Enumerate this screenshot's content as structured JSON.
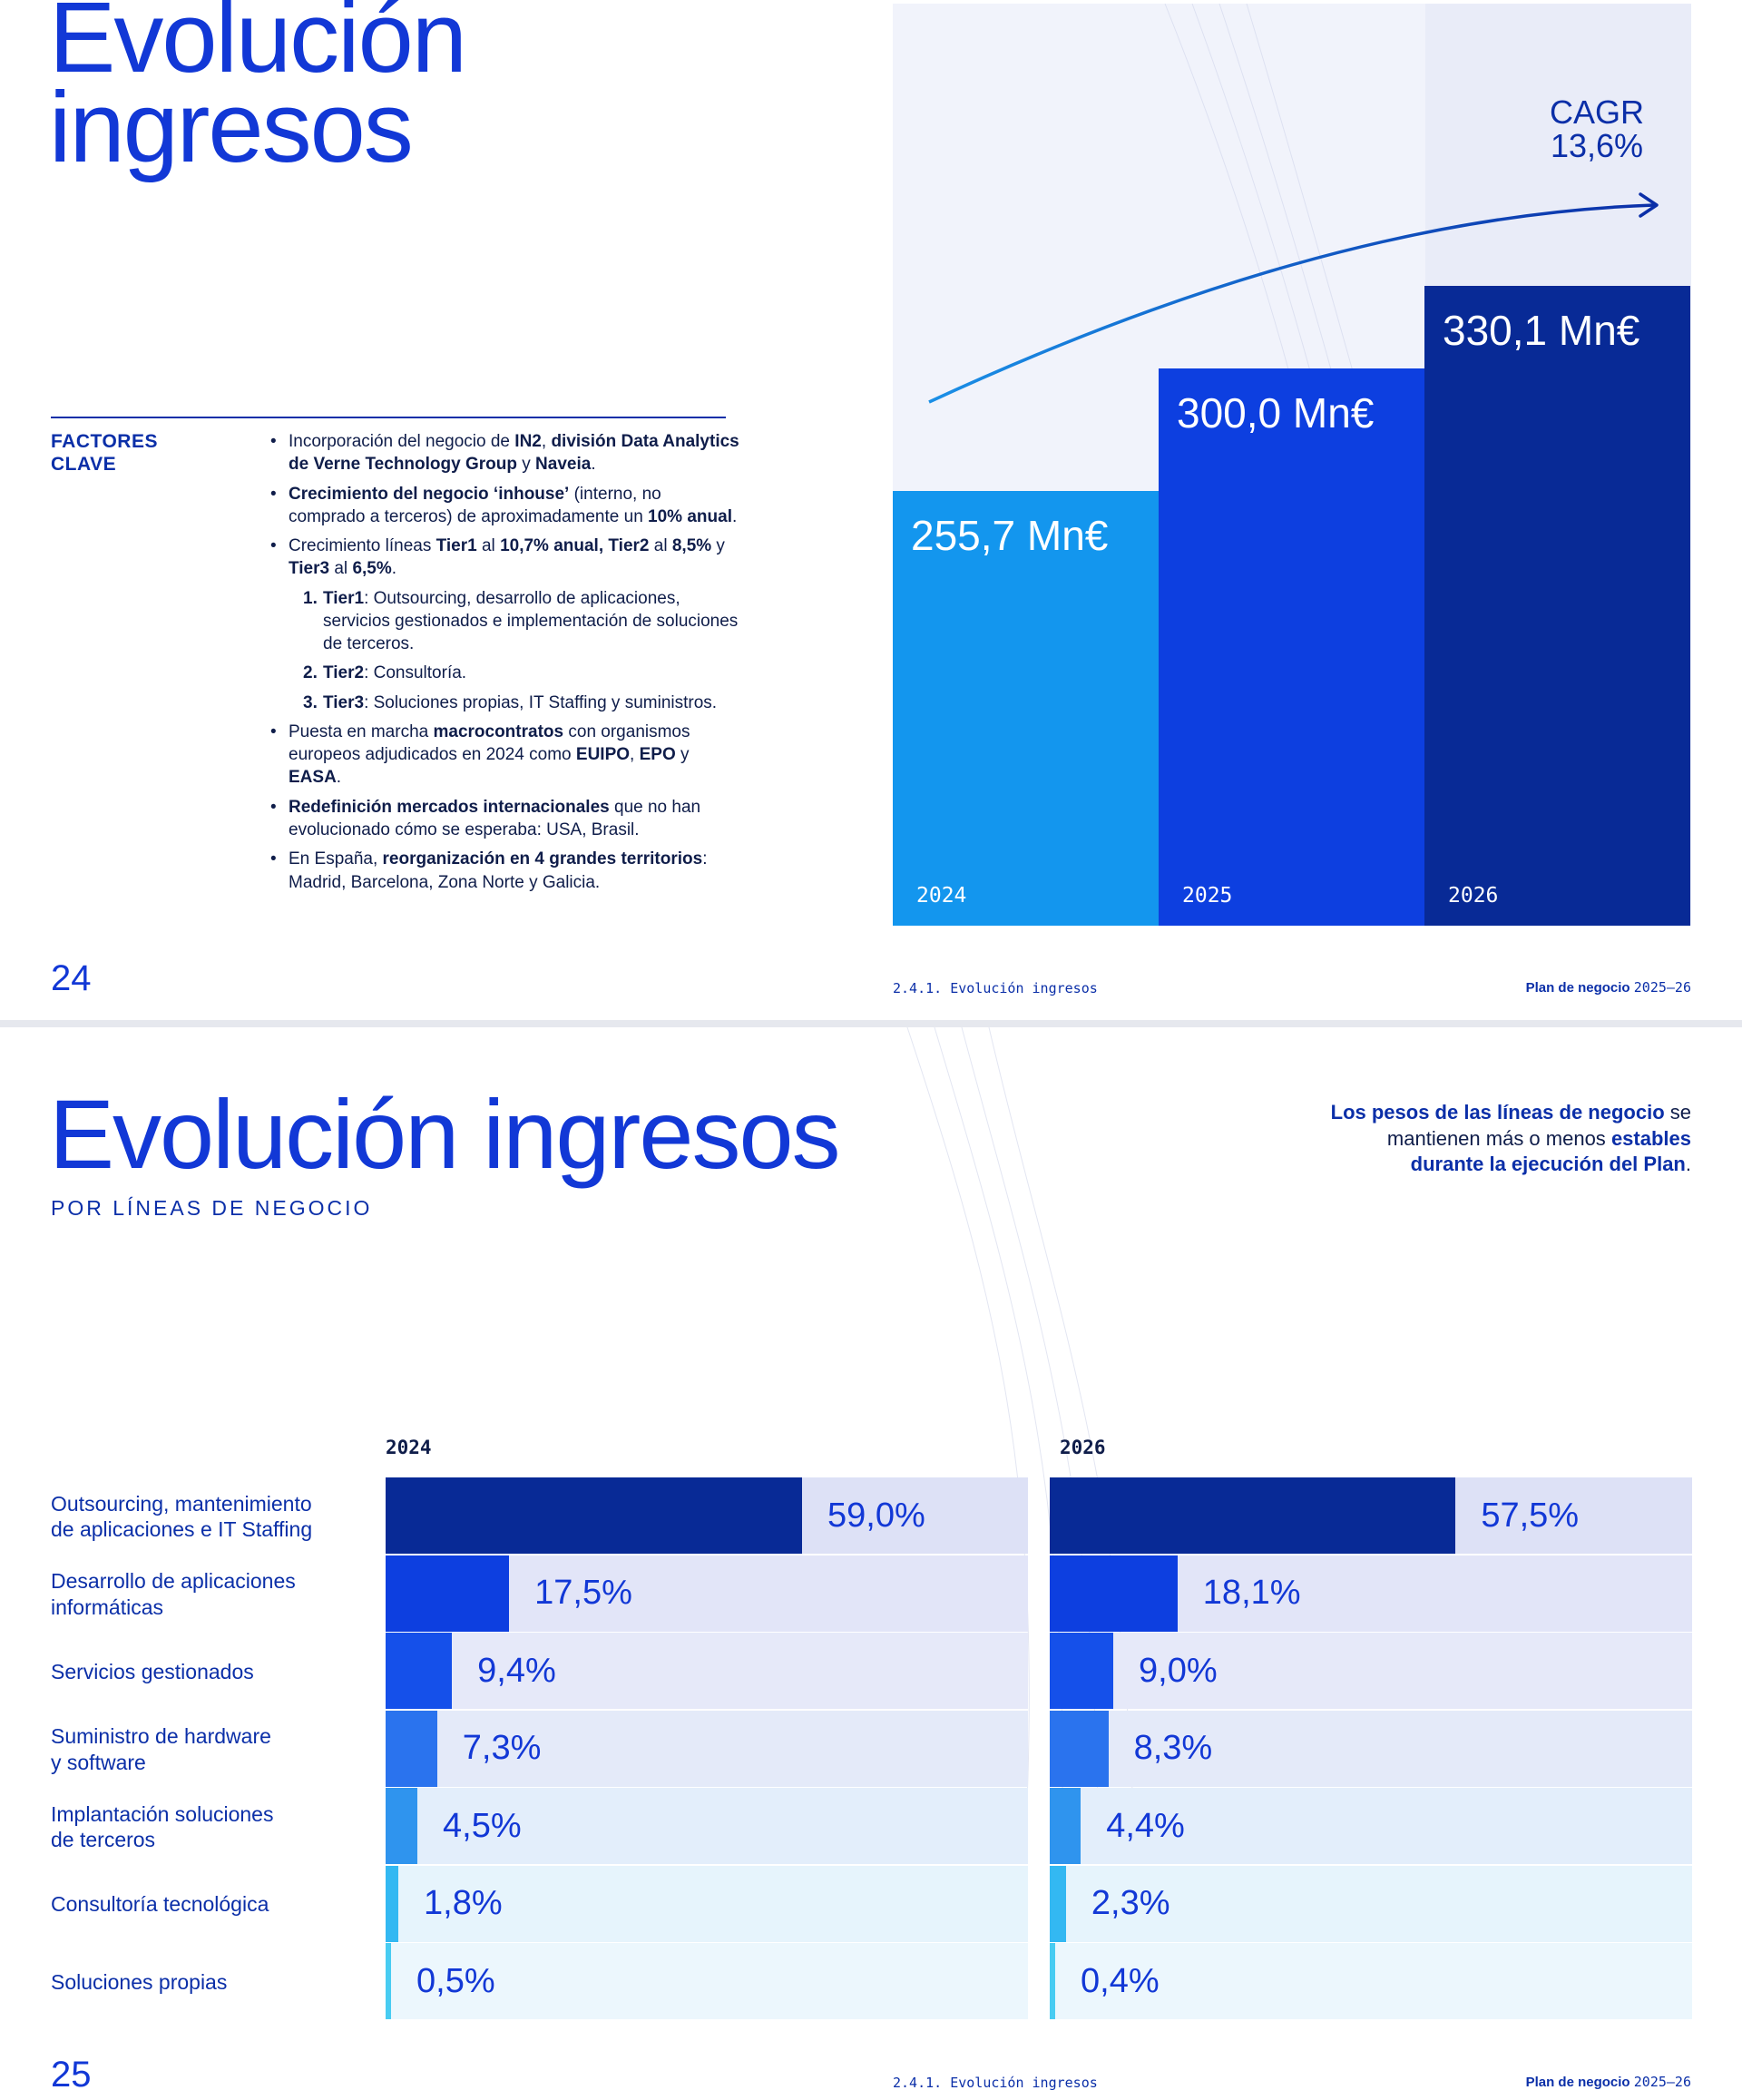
{
  "page1": {
    "title_line1": "Evolución",
    "title_line2": "ingresos",
    "factores_label_line1": "FACTORES",
    "factores_label_line2": "CLAVE",
    "page_number": "24",
    "footer_section": "2.4.1. Evolución ingresos",
    "footer_plan": "Plan de negocio",
    "footer_years": "2025–26",
    "cagr_label": "CAGR",
    "cagr_value": "13,6%",
    "colors": {
      "bar_2024": "#1396ee",
      "bar_2025": "#0d3fe0",
      "bar_2026": "#082a96",
      "accent": "#1238d6"
    },
    "chart_data": {
      "type": "bar",
      "categories": [
        "2024",
        "2025",
        "2026"
      ],
      "values": [
        255.7,
        300.0,
        330.1
      ],
      "value_labels": [
        "255,7 Mn€",
        "300,0 Mn€",
        "330,1 Mn€"
      ],
      "unit": "Mn€",
      "annotation": "CAGR 13,6%"
    }
  },
  "page2": {
    "title": "Evolución ingresos",
    "subtitle": "POR LÍNEAS DE NEGOCIO",
    "note_bold1": "Los pesos de las líneas de negocio",
    "note_plain1": " se mantienen más o menos ",
    "note_bold2": "estables durante la ejecución del Plan",
    "note_end": ".",
    "page_number": "25",
    "footer_section": "2.4.1. Evolución ingresos",
    "footer_plan": "Plan de negocio",
    "footer_years": "2025–26",
    "row_colors": [
      "#082a96",
      "#0d3fe0",
      "#1550ea",
      "#2a73ee",
      "#2f94ee",
      "#33b8f2",
      "#48ccf2"
    ],
    "chart_data": [
      {
        "type": "bar",
        "orientation": "horizontal",
        "title": "2024",
        "categories": [
          "Outsourcing, mantenimiento de aplicaciones e IT Staffing",
          "Desarrollo de aplicaciones informáticas",
          "Servicios gestionados",
          "Suministro de hardware y software",
          "Implantación soluciones de terceros",
          "Consultoría tecnológica",
          "Soluciones propias"
        ],
        "values": [
          59.0,
          17.5,
          9.4,
          7.3,
          4.5,
          1.8,
          0.5
        ],
        "value_labels": [
          "59,0%",
          "17,5%",
          "9,4%",
          "7,3%",
          "4,5%",
          "1,8%",
          "0,5%"
        ],
        "unit": "%"
      },
      {
        "type": "bar",
        "orientation": "horizontal",
        "title": "2026",
        "categories": [
          "Outsourcing, mantenimiento de aplicaciones e IT Staffing",
          "Desarrollo de aplicaciones informáticas",
          "Servicios gestionados",
          "Suministro de hardware y software",
          "Implantación soluciones de terceros",
          "Consultoría tecnológica",
          "Soluciones propias"
        ],
        "values": [
          57.5,
          18.1,
          9.0,
          8.3,
          4.4,
          2.3,
          0.4
        ],
        "value_labels": [
          "57,5%",
          "18,1%",
          "9,0%",
          "8,3%",
          "4,4%",
          "2,3%",
          "0,4%"
        ],
        "unit": "%"
      }
    ],
    "row_labels": [
      [
        "Outsourcing, mantenimiento",
        "de aplicaciones e IT Staffing"
      ],
      [
        "Desarrollo de aplicaciones",
        "informáticas"
      ],
      [
        "Servicios gestionados"
      ],
      [
        "Suministro de hardware",
        "y software"
      ],
      [
        "Implantación soluciones",
        "de terceros"
      ],
      [
        "Consultoría tecnológica"
      ],
      [
        "Soluciones propias"
      ]
    ]
  },
  "bullets": [
    {
      "parts": [
        [
          "Incorporación del negocio de ",
          false
        ],
        [
          "IN2",
          true
        ],
        [
          ", ",
          false
        ],
        [
          "división Data Analytics de Verne Technology Group",
          true
        ],
        [
          " y ",
          false
        ],
        [
          "Naveia",
          true
        ],
        [
          ".",
          false
        ]
      ]
    },
    {
      "parts": [
        [
          "Crecimiento del negocio ‘inhouse’",
          true
        ],
        [
          " (interno, no comprado a terceros) de aproximadamente un ",
          false
        ],
        [
          "10% anual",
          true
        ],
        [
          ".",
          false
        ]
      ]
    },
    {
      "parts": [
        [
          "Crecimiento líneas ",
          false
        ],
        [
          "Tier1",
          true
        ],
        [
          " al ",
          false
        ],
        [
          "10,7% anual,",
          true
        ],
        [
          " ",
          false
        ],
        [
          "Tier2",
          true
        ],
        [
          " al ",
          false
        ],
        [
          "8,5%",
          true
        ],
        [
          " y ",
          false
        ],
        [
          "Tier3",
          true
        ],
        [
          " al ",
          false
        ],
        [
          "6,5%",
          true
        ],
        [
          ".",
          false
        ]
      ]
    },
    {
      "num": "1.",
      "parts": [
        [
          "Tier1",
          true
        ],
        [
          ": Outsourcing, desarrollo de aplicaciones, servicios gestionados e implementación de soluciones de terceros.",
          false
        ]
      ]
    },
    {
      "num": "2.",
      "parts": [
        [
          "Tier2",
          true
        ],
        [
          ": Consultoría.",
          false
        ]
      ]
    },
    {
      "num": "3.",
      "parts": [
        [
          "Tier3",
          true
        ],
        [
          ": Soluciones propias, IT Staffing y suministros.",
          false
        ]
      ]
    },
    {
      "parts": [
        [
          "Puesta en marcha ",
          false
        ],
        [
          "macrocontratos",
          true
        ],
        [
          " con organismos europeos adjudicados en 2024 como ",
          false
        ],
        [
          "EUIPO",
          true
        ],
        [
          ", ",
          false
        ],
        [
          "EPO",
          true
        ],
        [
          " y ",
          false
        ],
        [
          "EASA",
          true
        ],
        [
          ".",
          false
        ]
      ]
    },
    {
      "parts": [
        [
          "Redefinición mercados  internacionales",
          true
        ],
        [
          " que no han evolucionado cómo se esperaba: USA, Brasil.",
          false
        ]
      ]
    },
    {
      "parts": [
        [
          "En España, ",
          false
        ],
        [
          "reorganización en 4 grandes territorios",
          true
        ],
        [
          ": Madrid, Barcelona, Zona Norte y Galicia.",
          false
        ]
      ]
    }
  ]
}
